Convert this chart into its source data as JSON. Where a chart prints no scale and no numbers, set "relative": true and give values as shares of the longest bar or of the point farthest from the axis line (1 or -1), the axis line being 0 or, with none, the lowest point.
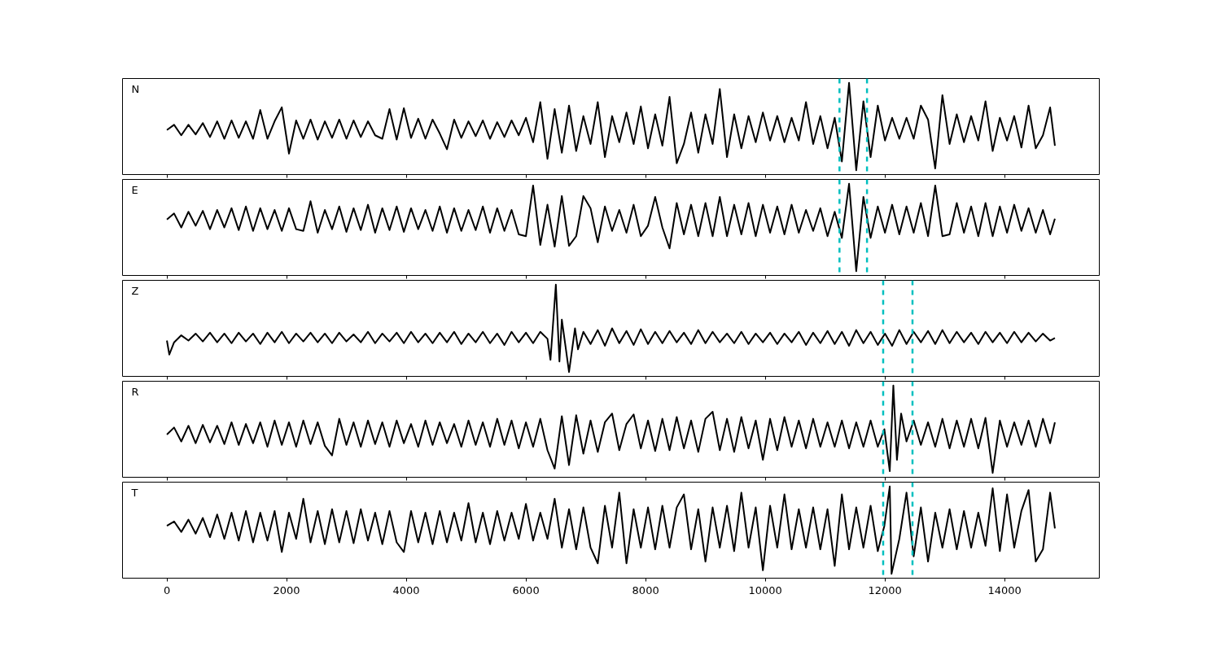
{
  "chart_data": [
    {
      "type": "line",
      "title": "N",
      "relative": true,
      "xlim": [
        -742,
        15582
      ],
      "xticks": [
        0,
        2000,
        4000,
        6000,
        8000,
        10000,
        12000,
        14000
      ],
      "tick_labels": false,
      "ref_lines": [
        {
          "axis": "x",
          "value": 11240,
          "color": "#00bfbf",
          "line_style": "dashed"
        },
        {
          "axis": "x",
          "value": 11700,
          "color": "#00bfbf",
          "line_style": "dashed"
        }
      ],
      "x": [
        0,
        120,
        240,
        360,
        480,
        600,
        720,
        840,
        960,
        1080,
        1200,
        1320,
        1440,
        1560,
        1680,
        1800,
        1920,
        2040,
        2160,
        2280,
        2400,
        2520,
        2640,
        2760,
        2880,
        3000,
        3120,
        3240,
        3360,
        3480,
        3600,
        3720,
        3840,
        3960,
        4080,
        4200,
        4320,
        4440,
        4560,
        4680,
        4800,
        4920,
        5040,
        5160,
        5280,
        5400,
        5520,
        5640,
        5760,
        5880,
        6000,
        6120,
        6240,
        6360,
        6480,
        6600,
        6720,
        6840,
        6960,
        7080,
        7200,
        7320,
        7440,
        7560,
        7680,
        7800,
        7920,
        8040,
        8160,
        8280,
        8400,
        8520,
        8640,
        8760,
        8880,
        9000,
        9120,
        9240,
        9360,
        9480,
        9600,
        9720,
        9840,
        9960,
        10080,
        10200,
        10320,
        10440,
        10560,
        10680,
        10800,
        10920,
        11040,
        11160,
        11280,
        11400,
        11520,
        11640,
        11760,
        11880,
        12000,
        12120,
        12240,
        12360,
        12480,
        12600,
        12720,
        12840,
        12960,
        13080,
        13200,
        13320,
        13440,
        13560,
        13680,
        13800,
        13920,
        14040,
        14160,
        14280,
        14400,
        14520,
        14640,
        14760,
        14840
      ],
      "series": [
        {
          "color": "#000000",
          "values": [
            0.46,
            0.52,
            0.4,
            0.52,
            0.41,
            0.54,
            0.38,
            0.56,
            0.36,
            0.57,
            0.37,
            0.56,
            0.36,
            0.69,
            0.36,
            0.56,
            0.72,
            0.19,
            0.57,
            0.36,
            0.58,
            0.35,
            0.56,
            0.37,
            0.58,
            0.36,
            0.57,
            0.38,
            0.56,
            0.4,
            0.36,
            0.7,
            0.35,
            0.71,
            0.37,
            0.59,
            0.36,
            0.58,
            0.42,
            0.24,
            0.58,
            0.37,
            0.56,
            0.39,
            0.57,
            0.36,
            0.55,
            0.38,
            0.57,
            0.4,
            0.6,
            0.32,
            0.78,
            0.13,
            0.7,
            0.2,
            0.74,
            0.22,
            0.62,
            0.3,
            0.78,
            0.15,
            0.62,
            0.32,
            0.66,
            0.3,
            0.73,
            0.25,
            0.64,
            0.28,
            0.84,
            0.08,
            0.3,
            0.66,
            0.2,
            0.64,
            0.3,
            0.93,
            0.15,
            0.64,
            0.25,
            0.62,
            0.32,
            0.66,
            0.34,
            0.62,
            0.32,
            0.6,
            0.34,
            0.78,
            0.3,
            0.62,
            0.25,
            0.6,
            0.1,
            1.0,
            0.0,
            0.79,
            0.15,
            0.74,
            0.34,
            0.6,
            0.36,
            0.6,
            0.36,
            0.74,
            0.58,
            0.02,
            0.86,
            0.3,
            0.64,
            0.32,
            0.62,
            0.34,
            0.79,
            0.22,
            0.6,
            0.34,
            0.62,
            0.26,
            0.74,
            0.25,
            0.4,
            0.72,
            0.28
          ]
        }
      ]
    },
    {
      "type": "line",
      "title": "E",
      "relative": true,
      "xlim": [
        -742,
        15582
      ],
      "xticks": [
        0,
        2000,
        4000,
        6000,
        8000,
        10000,
        12000,
        14000
      ],
      "tick_labels": false,
      "ref_lines": [
        {
          "axis": "x",
          "value": 11240,
          "color": "#00bfbf",
          "line_style": "dashed"
        },
        {
          "axis": "x",
          "value": 11700,
          "color": "#00bfbf",
          "line_style": "dashed"
        }
      ],
      "x": [
        0,
        120,
        240,
        360,
        480,
        600,
        720,
        840,
        960,
        1080,
        1200,
        1320,
        1440,
        1560,
        1680,
        1800,
        1920,
        2040,
        2160,
        2280,
        2400,
        2520,
        2640,
        2760,
        2880,
        3000,
        3120,
        3240,
        3360,
        3480,
        3600,
        3720,
        3840,
        3960,
        4080,
        4200,
        4320,
        4440,
        4560,
        4680,
        4800,
        4920,
        5040,
        5160,
        5280,
        5400,
        5520,
        5640,
        5760,
        5880,
        6000,
        6120,
        6240,
        6360,
        6480,
        6600,
        6720,
        6840,
        6960,
        7080,
        7200,
        7320,
        7440,
        7560,
        7680,
        7800,
        7920,
        8040,
        8160,
        8280,
        8400,
        8520,
        8640,
        8760,
        8880,
        9000,
        9120,
        9240,
        9360,
        9480,
        9600,
        9720,
        9840,
        9960,
        10080,
        10200,
        10320,
        10440,
        10560,
        10680,
        10800,
        10920,
        11040,
        11160,
        11280,
        11400,
        11520,
        11640,
        11760,
        11880,
        12000,
        12120,
        12240,
        12360,
        12480,
        12600,
        12720,
        12840,
        12960,
        13080,
        13200,
        13320,
        13440,
        13560,
        13680,
        13800,
        13920,
        14040,
        14160,
        14280,
        14400,
        14520,
        14640,
        14760,
        14840
      ],
      "series": [
        {
          "color": "#000000",
          "values": [
            0.59,
            0.66,
            0.5,
            0.68,
            0.52,
            0.69,
            0.48,
            0.7,
            0.5,
            0.72,
            0.47,
            0.74,
            0.46,
            0.72,
            0.48,
            0.7,
            0.46,
            0.72,
            0.48,
            0.46,
            0.8,
            0.44,
            0.7,
            0.48,
            0.74,
            0.45,
            0.72,
            0.47,
            0.76,
            0.44,
            0.72,
            0.47,
            0.74,
            0.45,
            0.72,
            0.48,
            0.7,
            0.46,
            0.74,
            0.44,
            0.72,
            0.46,
            0.7,
            0.47,
            0.74,
            0.44,
            0.72,
            0.46,
            0.7,
            0.42,
            0.4,
            0.98,
            0.3,
            0.76,
            0.28,
            0.86,
            0.29,
            0.4,
            0.86,
            0.72,
            0.33,
            0.74,
            0.46,
            0.7,
            0.44,
            0.76,
            0.4,
            0.52,
            0.85,
            0.5,
            0.26,
            0.78,
            0.42,
            0.76,
            0.4,
            0.78,
            0.4,
            0.85,
            0.4,
            0.76,
            0.42,
            0.78,
            0.4,
            0.76,
            0.44,
            0.74,
            0.42,
            0.76,
            0.44,
            0.7,
            0.46,
            0.72,
            0.4,
            0.68,
            0.38,
            1.0,
            0.0,
            0.85,
            0.38,
            0.74,
            0.44,
            0.76,
            0.42,
            0.74,
            0.44,
            0.78,
            0.4,
            0.98,
            0.4,
            0.42,
            0.78,
            0.44,
            0.74,
            0.4,
            0.78,
            0.4,
            0.74,
            0.44,
            0.76,
            0.46,
            0.72,
            0.44,
            0.7,
            0.42,
            0.6
          ]
        }
      ]
    },
    {
      "type": "line",
      "title": "Z",
      "relative": true,
      "xlim": [
        -742,
        15582
      ],
      "xticks": [
        0,
        2000,
        4000,
        6000,
        8000,
        10000,
        12000,
        14000
      ],
      "tick_labels": false,
      "ref_lines": [
        {
          "axis": "x",
          "value": 11970,
          "color": "#00bfbf",
          "line_style": "dashed"
        },
        {
          "axis": "x",
          "value": 12460,
          "color": "#00bfbf",
          "line_style": "dashed"
        }
      ],
      "x": [
        0,
        40,
        120,
        240,
        360,
        480,
        600,
        720,
        840,
        960,
        1080,
        1200,
        1320,
        1440,
        1560,
        1680,
        1800,
        1920,
        2040,
        2160,
        2280,
        2400,
        2520,
        2640,
        2760,
        2880,
        3000,
        3120,
        3240,
        3360,
        3480,
        3600,
        3720,
        3840,
        3960,
        4080,
        4200,
        4320,
        4440,
        4560,
        4680,
        4800,
        4920,
        5040,
        5160,
        5280,
        5400,
        5520,
        5640,
        5760,
        5880,
        6000,
        6120,
        6240,
        6360,
        6410,
        6500,
        6560,
        6600,
        6660,
        6720,
        6820,
        6870,
        6960,
        7080,
        7200,
        7320,
        7440,
        7560,
        7680,
        7800,
        7920,
        8040,
        8160,
        8280,
        8400,
        8520,
        8640,
        8760,
        8880,
        9000,
        9120,
        9240,
        9360,
        9480,
        9600,
        9720,
        9840,
        9960,
        10080,
        10200,
        10320,
        10440,
        10560,
        10680,
        10800,
        10920,
        11040,
        11160,
        11280,
        11400,
        11520,
        11640,
        11760,
        11880,
        12000,
        12120,
        12240,
        12360,
        12480,
        12600,
        12720,
        12840,
        12960,
        13080,
        13200,
        13320,
        13440,
        13560,
        13680,
        13800,
        13920,
        14040,
        14160,
        14280,
        14400,
        14520,
        14640,
        14760,
        14840
      ],
      "series": [
        {
          "color": "#000000",
          "values": [
            0.36,
            0.2,
            0.34,
            0.42,
            0.36,
            0.44,
            0.35,
            0.45,
            0.34,
            0.44,
            0.33,
            0.45,
            0.35,
            0.44,
            0.32,
            0.45,
            0.34,
            0.46,
            0.33,
            0.44,
            0.35,
            0.45,
            0.34,
            0.44,
            0.33,
            0.45,
            0.35,
            0.43,
            0.34,
            0.46,
            0.33,
            0.44,
            0.35,
            0.45,
            0.33,
            0.46,
            0.34,
            0.44,
            0.33,
            0.45,
            0.34,
            0.46,
            0.32,
            0.44,
            0.34,
            0.46,
            0.33,
            0.44,
            0.31,
            0.46,
            0.34,
            0.45,
            0.33,
            0.46,
            0.38,
            0.14,
            1.0,
            0.12,
            0.6,
            0.3,
            0.0,
            0.5,
            0.26,
            0.46,
            0.32,
            0.48,
            0.3,
            0.5,
            0.33,
            0.47,
            0.31,
            0.49,
            0.32,
            0.46,
            0.33,
            0.47,
            0.34,
            0.45,
            0.32,
            0.48,
            0.33,
            0.46,
            0.34,
            0.44,
            0.33,
            0.46,
            0.32,
            0.44,
            0.34,
            0.45,
            0.32,
            0.44,
            0.34,
            0.46,
            0.31,
            0.45,
            0.33,
            0.47,
            0.32,
            0.46,
            0.3,
            0.48,
            0.33,
            0.46,
            0.31,
            0.44,
            0.3,
            0.48,
            0.32,
            0.46,
            0.34,
            0.47,
            0.32,
            0.48,
            0.33,
            0.46,
            0.34,
            0.45,
            0.32,
            0.46,
            0.34,
            0.45,
            0.33,
            0.46,
            0.34,
            0.45,
            0.35,
            0.44,
            0.36,
            0.39
          ]
        }
      ]
    },
    {
      "type": "line",
      "title": "R",
      "relative": true,
      "xlim": [
        -742,
        15582
      ],
      "xticks": [
        0,
        2000,
        4000,
        6000,
        8000,
        10000,
        12000,
        14000
      ],
      "tick_labels": false,
      "ref_lines": [
        {
          "axis": "x",
          "value": 11970,
          "color": "#00bfbf",
          "line_style": "dashed"
        },
        {
          "axis": "x",
          "value": 12460,
          "color": "#00bfbf",
          "line_style": "dashed"
        }
      ],
      "x": [
        0,
        120,
        240,
        360,
        480,
        600,
        720,
        840,
        960,
        1080,
        1200,
        1320,
        1440,
        1560,
        1680,
        1800,
        1920,
        2040,
        2160,
        2280,
        2400,
        2520,
        2640,
        2760,
        2880,
        3000,
        3120,
        3240,
        3360,
        3480,
        3600,
        3720,
        3840,
        3960,
        4080,
        4200,
        4320,
        4440,
        4560,
        4680,
        4800,
        4920,
        5040,
        5160,
        5280,
        5400,
        5520,
        5640,
        5760,
        5880,
        6000,
        6120,
        6240,
        6360,
        6480,
        6600,
        6720,
        6840,
        6960,
        7080,
        7200,
        7320,
        7440,
        7560,
        7680,
        7800,
        7920,
        8040,
        8160,
        8280,
        8400,
        8520,
        8640,
        8760,
        8880,
        9000,
        9120,
        9240,
        9360,
        9480,
        9600,
        9720,
        9840,
        9960,
        10080,
        10200,
        10320,
        10440,
        10560,
        10680,
        10800,
        10920,
        11040,
        11160,
        11280,
        11400,
        11520,
        11640,
        11760,
        11880,
        11990,
        12080,
        12140,
        12200,
        12270,
        12360,
        12480,
        12600,
        12720,
        12840,
        12960,
        13080,
        13200,
        13320,
        13440,
        13560,
        13680,
        13800,
        13920,
        14040,
        14160,
        14280,
        14400,
        14520,
        14640,
        14760,
        14840
      ],
      "series": [
        {
          "color": "#000000",
          "values": [
            0.44,
            0.52,
            0.36,
            0.54,
            0.34,
            0.55,
            0.35,
            0.54,
            0.33,
            0.58,
            0.32,
            0.56,
            0.34,
            0.58,
            0.3,
            0.6,
            0.32,
            0.58,
            0.3,
            0.6,
            0.33,
            0.58,
            0.31,
            0.2,
            0.62,
            0.32,
            0.58,
            0.3,
            0.6,
            0.33,
            0.58,
            0.3,
            0.6,
            0.34,
            0.56,
            0.3,
            0.6,
            0.32,
            0.58,
            0.34,
            0.56,
            0.3,
            0.6,
            0.32,
            0.58,
            0.3,
            0.62,
            0.32,
            0.6,
            0.28,
            0.58,
            0.3,
            0.62,
            0.26,
            0.05,
            0.65,
            0.09,
            0.66,
            0.22,
            0.6,
            0.24,
            0.58,
            0.68,
            0.26,
            0.56,
            0.67,
            0.28,
            0.6,
            0.25,
            0.62,
            0.26,
            0.64,
            0.28,
            0.6,
            0.24,
            0.62,
            0.7,
            0.26,
            0.62,
            0.24,
            0.64,
            0.28,
            0.6,
            0.15,
            0.62,
            0.26,
            0.64,
            0.3,
            0.6,
            0.28,
            0.62,
            0.3,
            0.58,
            0.3,
            0.6,
            0.28,
            0.58,
            0.3,
            0.6,
            0.3,
            0.5,
            0.02,
            1.0,
            0.15,
            0.68,
            0.36,
            0.6,
            0.32,
            0.58,
            0.3,
            0.62,
            0.28,
            0.6,
            0.3,
            0.62,
            0.28,
            0.63,
            0.0,
            0.6,
            0.3,
            0.58,
            0.32,
            0.6,
            0.3,
            0.62,
            0.34,
            0.58
          ]
        }
      ]
    },
    {
      "type": "line",
      "title": "T",
      "relative": true,
      "xlim": [
        -742,
        15582
      ],
      "xticks": [
        0,
        2000,
        4000,
        6000,
        8000,
        10000,
        12000,
        14000
      ],
      "tick_labels": "x",
      "ref_lines": [
        {
          "axis": "x",
          "value": 11970,
          "color": "#00bfbf",
          "line_style": "dashed"
        },
        {
          "axis": "x",
          "value": 12460,
          "color": "#00bfbf",
          "line_style": "dashed"
        }
      ],
      "x": [
        0,
        120,
        240,
        360,
        480,
        600,
        720,
        840,
        960,
        1080,
        1200,
        1320,
        1440,
        1560,
        1680,
        1800,
        1920,
        2040,
        2160,
        2280,
        2400,
        2520,
        2640,
        2760,
        2880,
        3000,
        3120,
        3240,
        3360,
        3480,
        3600,
        3720,
        3840,
        3960,
        4080,
        4200,
        4320,
        4440,
        4560,
        4680,
        4800,
        4920,
        5040,
        5160,
        5280,
        5400,
        5520,
        5640,
        5760,
        5880,
        6000,
        6120,
        6240,
        6360,
        6480,
        6600,
        6720,
        6840,
        6960,
        7080,
        7200,
        7320,
        7440,
        7560,
        7680,
        7800,
        7920,
        8040,
        8160,
        8280,
        8400,
        8520,
        8640,
        8760,
        8880,
        9000,
        9120,
        9240,
        9360,
        9480,
        9600,
        9720,
        9840,
        9960,
        10080,
        10200,
        10320,
        10440,
        10560,
        10680,
        10800,
        10920,
        11040,
        11160,
        11280,
        11400,
        11520,
        11640,
        11760,
        11880,
        11990,
        12080,
        12110,
        12240,
        12360,
        12480,
        12600,
        12720,
        12840,
        12960,
        13080,
        13200,
        13320,
        13440,
        13560,
        13680,
        13800,
        13920,
        14040,
        14160,
        14280,
        14400,
        14520,
        14640,
        14760,
        14840
      ],
      "series": [
        {
          "color": "#000000",
          "values": [
            0.55,
            0.6,
            0.48,
            0.62,
            0.46,
            0.64,
            0.42,
            0.68,
            0.4,
            0.7,
            0.38,
            0.72,
            0.36,
            0.7,
            0.38,
            0.72,
            0.25,
            0.7,
            0.4,
            0.86,
            0.36,
            0.72,
            0.34,
            0.74,
            0.36,
            0.72,
            0.35,
            0.74,
            0.38,
            0.7,
            0.34,
            0.72,
            0.36,
            0.25,
            0.72,
            0.36,
            0.7,
            0.34,
            0.72,
            0.36,
            0.7,
            0.38,
            0.81,
            0.36,
            0.7,
            0.34,
            0.72,
            0.38,
            0.7,
            0.4,
            0.8,
            0.38,
            0.7,
            0.4,
            0.86,
            0.3,
            0.74,
            0.28,
            0.76,
            0.3,
            0.12,
            0.78,
            0.3,
            0.93,
            0.12,
            0.74,
            0.3,
            0.76,
            0.28,
            0.78,
            0.3,
            0.76,
            0.91,
            0.28,
            0.74,
            0.14,
            0.76,
            0.3,
            0.78,
            0.26,
            0.93,
            0.3,
            0.76,
            0.04,
            0.78,
            0.3,
            0.91,
            0.28,
            0.74,
            0.3,
            0.76,
            0.28,
            0.74,
            0.09,
            0.91,
            0.28,
            0.76,
            0.3,
            0.78,
            0.26,
            0.55,
            1.0,
            0.0,
            0.4,
            0.93,
            0.2,
            0.76,
            0.14,
            0.7,
            0.3,
            0.74,
            0.28,
            0.72,
            0.3,
            0.7,
            0.32,
            0.98,
            0.26,
            0.91,
            0.3,
            0.72,
            0.96,
            0.14,
            0.28,
            0.93,
            0.52
          ]
        }
      ]
    }
  ]
}
